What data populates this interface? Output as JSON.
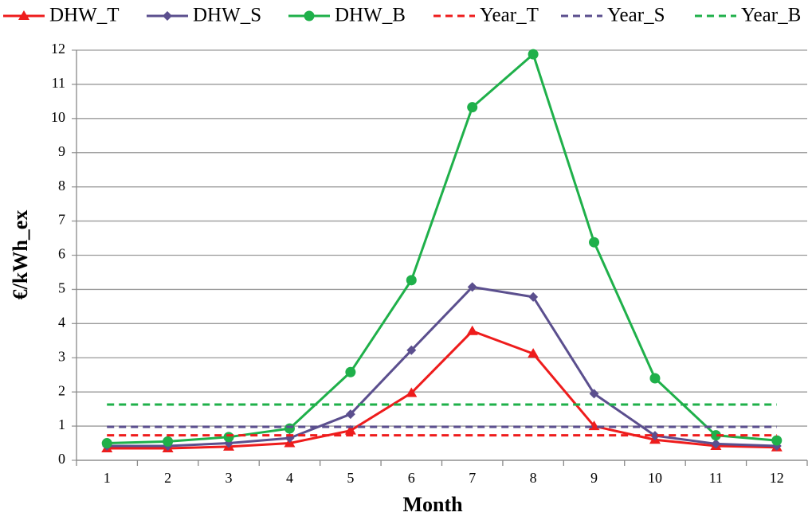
{
  "chart_data": {
    "type": "line",
    "ylabel": "€/kWh_ex",
    "xlabel": "Month",
    "categories": [
      1,
      2,
      3,
      4,
      5,
      6,
      7,
      8,
      9,
      10,
      11,
      12
    ],
    "series": [
      {
        "name": "DHW_T",
        "color": "#ee1c1c",
        "marker": "triangle",
        "dashed": false,
        "values": [
          0.35,
          0.35,
          0.4,
          0.5,
          0.87,
          1.97,
          3.78,
          3.12,
          1.0,
          0.6,
          0.42,
          0.38
        ]
      },
      {
        "name": "DHW_S",
        "color": "#5b4f8e",
        "marker": "diamond",
        "dashed": false,
        "values": [
          0.42,
          0.42,
          0.5,
          0.65,
          1.35,
          3.22,
          5.07,
          4.78,
          1.95,
          0.72,
          0.48,
          0.42
        ]
      },
      {
        "name": "DHW_B",
        "color": "#1fb04a",
        "marker": "circle",
        "dashed": false,
        "values": [
          0.5,
          0.55,
          0.68,
          0.93,
          2.58,
          5.27,
          10.33,
          11.88,
          6.38,
          2.4,
          0.73,
          0.58
        ]
      },
      {
        "name": "Year_T",
        "color": "#ee1c1c",
        "marker": "none",
        "dashed": true,
        "values": [
          0.73,
          0.73,
          0.73,
          0.73,
          0.73,
          0.73,
          0.73,
          0.73,
          0.73,
          0.73,
          0.73,
          0.73
        ]
      },
      {
        "name": "Year_S",
        "color": "#5b4f8e",
        "marker": "none",
        "dashed": true,
        "values": [
          0.98,
          0.98,
          0.98,
          0.98,
          0.98,
          0.98,
          0.98,
          0.98,
          0.98,
          0.98,
          0.98,
          0.98
        ]
      },
      {
        "name": "Year_B",
        "color": "#1fb04a",
        "marker": "none",
        "dashed": true,
        "values": [
          1.63,
          1.63,
          1.63,
          1.63,
          1.63,
          1.63,
          1.63,
          1.63,
          1.63,
          1.63,
          1.63,
          1.63
        ]
      }
    ],
    "ylim": [
      0,
      12
    ],
    "yticks": [
      0,
      1,
      2,
      3,
      4,
      5,
      6,
      7,
      8,
      9,
      10,
      11,
      12
    ],
    "grid": true,
    "legend": "top"
  }
}
